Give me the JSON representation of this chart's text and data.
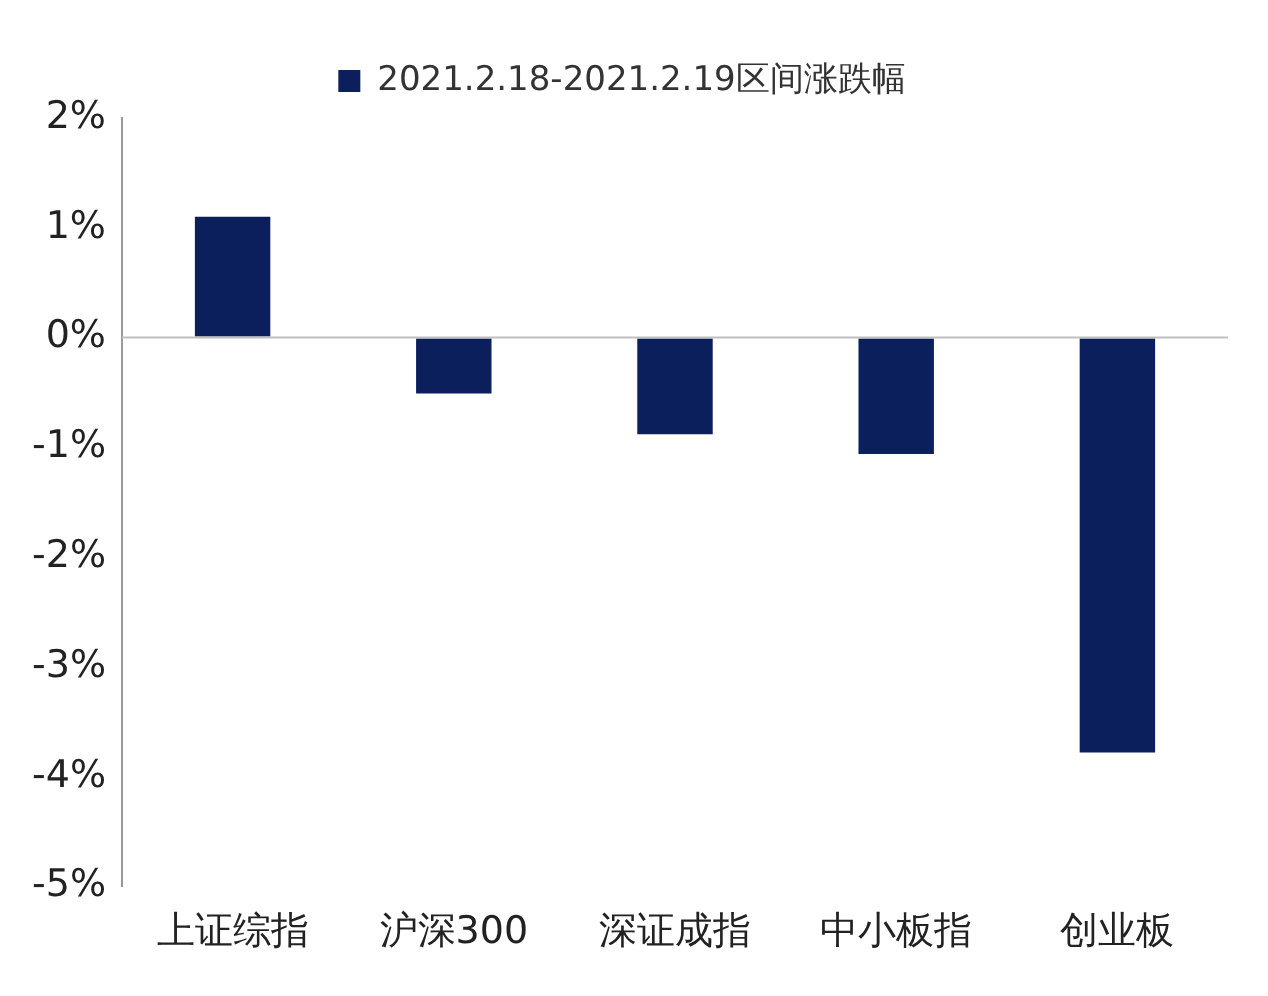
{
  "chart_data": {
    "type": "bar",
    "categories": [
      "上证综指",
      "沪深300",
      "深证成指",
      "中小板指",
      "创业板"
    ],
    "series": [
      {
        "name": "2021.2.18-2021.2.19区间涨跌幅",
        "color": "#0b1f5c",
        "values": [
          1.1,
          -0.51,
          -0.88,
          -1.06,
          -3.78
        ]
      }
    ],
    "ylim": [
      -5,
      2
    ],
    "yticks": [
      {
        "value": 2,
        "label": "2%"
      },
      {
        "value": 1,
        "label": "1%"
      },
      {
        "value": 0,
        "label": "0%"
      },
      {
        "value": -1,
        "label": "-1%"
      },
      {
        "value": -2,
        "label": "-2%"
      },
      {
        "value": -3,
        "label": "-3%"
      },
      {
        "value": -4,
        "label": "-4%"
      },
      {
        "value": -5,
        "label": "-5%"
      }
    ],
    "ref_lines": [
      {
        "axis": "y",
        "value": 0,
        "color": "#bfbfbf"
      }
    ],
    "legend": "top"
  }
}
